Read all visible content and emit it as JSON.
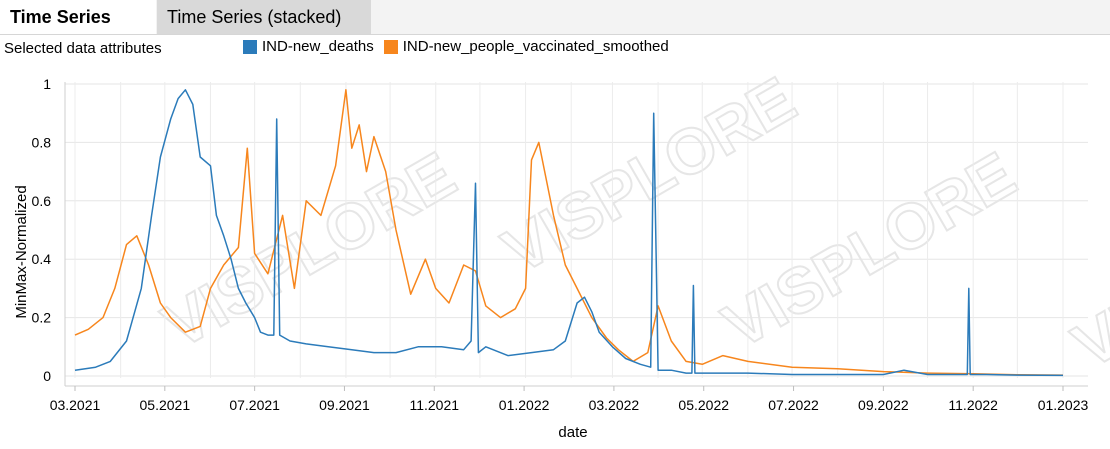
{
  "tabs": [
    {
      "label": "Time Series",
      "active": true
    },
    {
      "label": "Time Series (stacked)",
      "active": false
    }
  ],
  "subtitle": "Selected data attributes",
  "watermark": "VISPLORE",
  "chart_data": {
    "type": "line",
    "xlabel": "date",
    "ylabel": "MinMax-Normalized",
    "ylim": [
      0,
      1
    ],
    "yticks": [
      "0",
      "0.2",
      "0.4",
      "0.6",
      "0.8",
      "1"
    ],
    "xticks": [
      "03.2021",
      "05.2021",
      "07.2021",
      "09.2021",
      "11.2021",
      "01.2022",
      "03.2022",
      "05.2022",
      "07.2022",
      "09.2022",
      "11.2022",
      "01.2023"
    ],
    "xlim": [
      "2021-03",
      "2023-01"
    ],
    "grid": true,
    "legend_position": "top",
    "series": [
      {
        "name": "IND-new_deaths",
        "color": "#2b7bba",
        "x": [
          "2021-03-01",
          "2021-03-15",
          "2021-03-25",
          "2021-04-05",
          "2021-04-15",
          "2021-04-22",
          "2021-04-28",
          "2021-05-05",
          "2021-05-10",
          "2021-05-15",
          "2021-05-20",
          "2021-05-25",
          "2021-06-01",
          "2021-06-05",
          "2021-06-10",
          "2021-06-15",
          "2021-06-20",
          "2021-06-25",
          "2021-07-01",
          "2021-07-05",
          "2021-07-10",
          "2021-07-14",
          "2021-07-16",
          "2021-07-18",
          "2021-07-25",
          "2021-08-05",
          "2021-08-20",
          "2021-09-05",
          "2021-09-20",
          "2021-10-05",
          "2021-10-20",
          "2021-11-05",
          "2021-11-20",
          "2021-11-25",
          "2021-11-28",
          "2021-11-30",
          "2021-12-05",
          "2021-12-20",
          "2022-01-05",
          "2022-01-20",
          "2022-01-28",
          "2022-02-05",
          "2022-02-10",
          "2022-02-15",
          "2022-02-20",
          "2022-03-01",
          "2022-03-10",
          "2022-03-20",
          "2022-03-27",
          "2022-03-29",
          "2022-04-01",
          "2022-04-10",
          "2022-04-20",
          "2022-04-24",
          "2022-04-25",
          "2022-04-26",
          "2022-05-10",
          "2022-06-01",
          "2022-07-01",
          "2022-08-01",
          "2022-09-01",
          "2022-09-15",
          "2022-10-01",
          "2022-10-20",
          "2022-10-28",
          "2022-10-29",
          "2022-10-30",
          "2022-11-10",
          "2022-12-01",
          "2023-01-01"
        ],
        "values": [
          0.02,
          0.03,
          0.05,
          0.12,
          0.3,
          0.55,
          0.75,
          0.88,
          0.95,
          0.98,
          0.93,
          0.75,
          0.72,
          0.55,
          0.48,
          0.4,
          0.3,
          0.25,
          0.2,
          0.15,
          0.14,
          0.14,
          0.88,
          0.14,
          0.12,
          0.11,
          0.1,
          0.09,
          0.08,
          0.08,
          0.1,
          0.1,
          0.09,
          0.12,
          0.66,
          0.08,
          0.1,
          0.07,
          0.08,
          0.09,
          0.12,
          0.25,
          0.27,
          0.22,
          0.15,
          0.1,
          0.06,
          0.04,
          0.03,
          0.9,
          0.02,
          0.02,
          0.01,
          0.01,
          0.31,
          0.01,
          0.01,
          0.01,
          0.005,
          0.005,
          0.005,
          0.02,
          0.005,
          0.005,
          0.005,
          0.3,
          0.005,
          0.005,
          0.003,
          0.002
        ]
      },
      {
        "name": "IND-new_people_vaccinated_smoothed",
        "color": "#f7861d",
        "x": [
          "2021-03-01",
          "2021-03-10",
          "2021-03-20",
          "2021-03-28",
          "2021-04-05",
          "2021-04-12",
          "2021-04-20",
          "2021-04-28",
          "2021-05-05",
          "2021-05-15",
          "2021-05-25",
          "2021-06-01",
          "2021-06-10",
          "2021-06-20",
          "2021-06-26",
          "2021-07-01",
          "2021-07-10",
          "2021-07-20",
          "2021-07-28",
          "2021-08-05",
          "2021-08-15",
          "2021-08-25",
          "2021-09-01",
          "2021-09-05",
          "2021-09-10",
          "2021-09-15",
          "2021-09-20",
          "2021-09-28",
          "2021-10-05",
          "2021-10-15",
          "2021-10-25",
          "2021-11-01",
          "2021-11-10",
          "2021-11-20",
          "2021-11-28",
          "2021-12-05",
          "2021-12-15",
          "2021-12-25",
          "2022-01-01",
          "2022-01-05",
          "2022-01-10",
          "2022-01-20",
          "2022-01-28",
          "2022-02-05",
          "2022-02-15",
          "2022-02-25",
          "2022-03-05",
          "2022-03-15",
          "2022-03-25",
          "2022-04-01",
          "2022-04-10",
          "2022-04-20",
          "2022-05-01",
          "2022-05-15",
          "2022-06-01",
          "2022-07-01",
          "2022-08-01",
          "2022-09-01",
          "2022-10-01",
          "2022-11-01",
          "2022-12-01",
          "2023-01-01"
        ],
        "values": [
          0.14,
          0.16,
          0.2,
          0.3,
          0.45,
          0.48,
          0.38,
          0.25,
          0.2,
          0.15,
          0.17,
          0.3,
          0.38,
          0.44,
          0.78,
          0.42,
          0.35,
          0.55,
          0.3,
          0.6,
          0.55,
          0.72,
          0.98,
          0.78,
          0.86,
          0.7,
          0.82,
          0.7,
          0.5,
          0.28,
          0.4,
          0.3,
          0.25,
          0.38,
          0.36,
          0.24,
          0.2,
          0.23,
          0.3,
          0.74,
          0.8,
          0.55,
          0.38,
          0.3,
          0.2,
          0.13,
          0.09,
          0.05,
          0.08,
          0.24,
          0.12,
          0.05,
          0.04,
          0.07,
          0.05,
          0.03,
          0.025,
          0.015,
          0.01,
          0.008,
          0.004,
          0.003
        ]
      }
    ]
  }
}
